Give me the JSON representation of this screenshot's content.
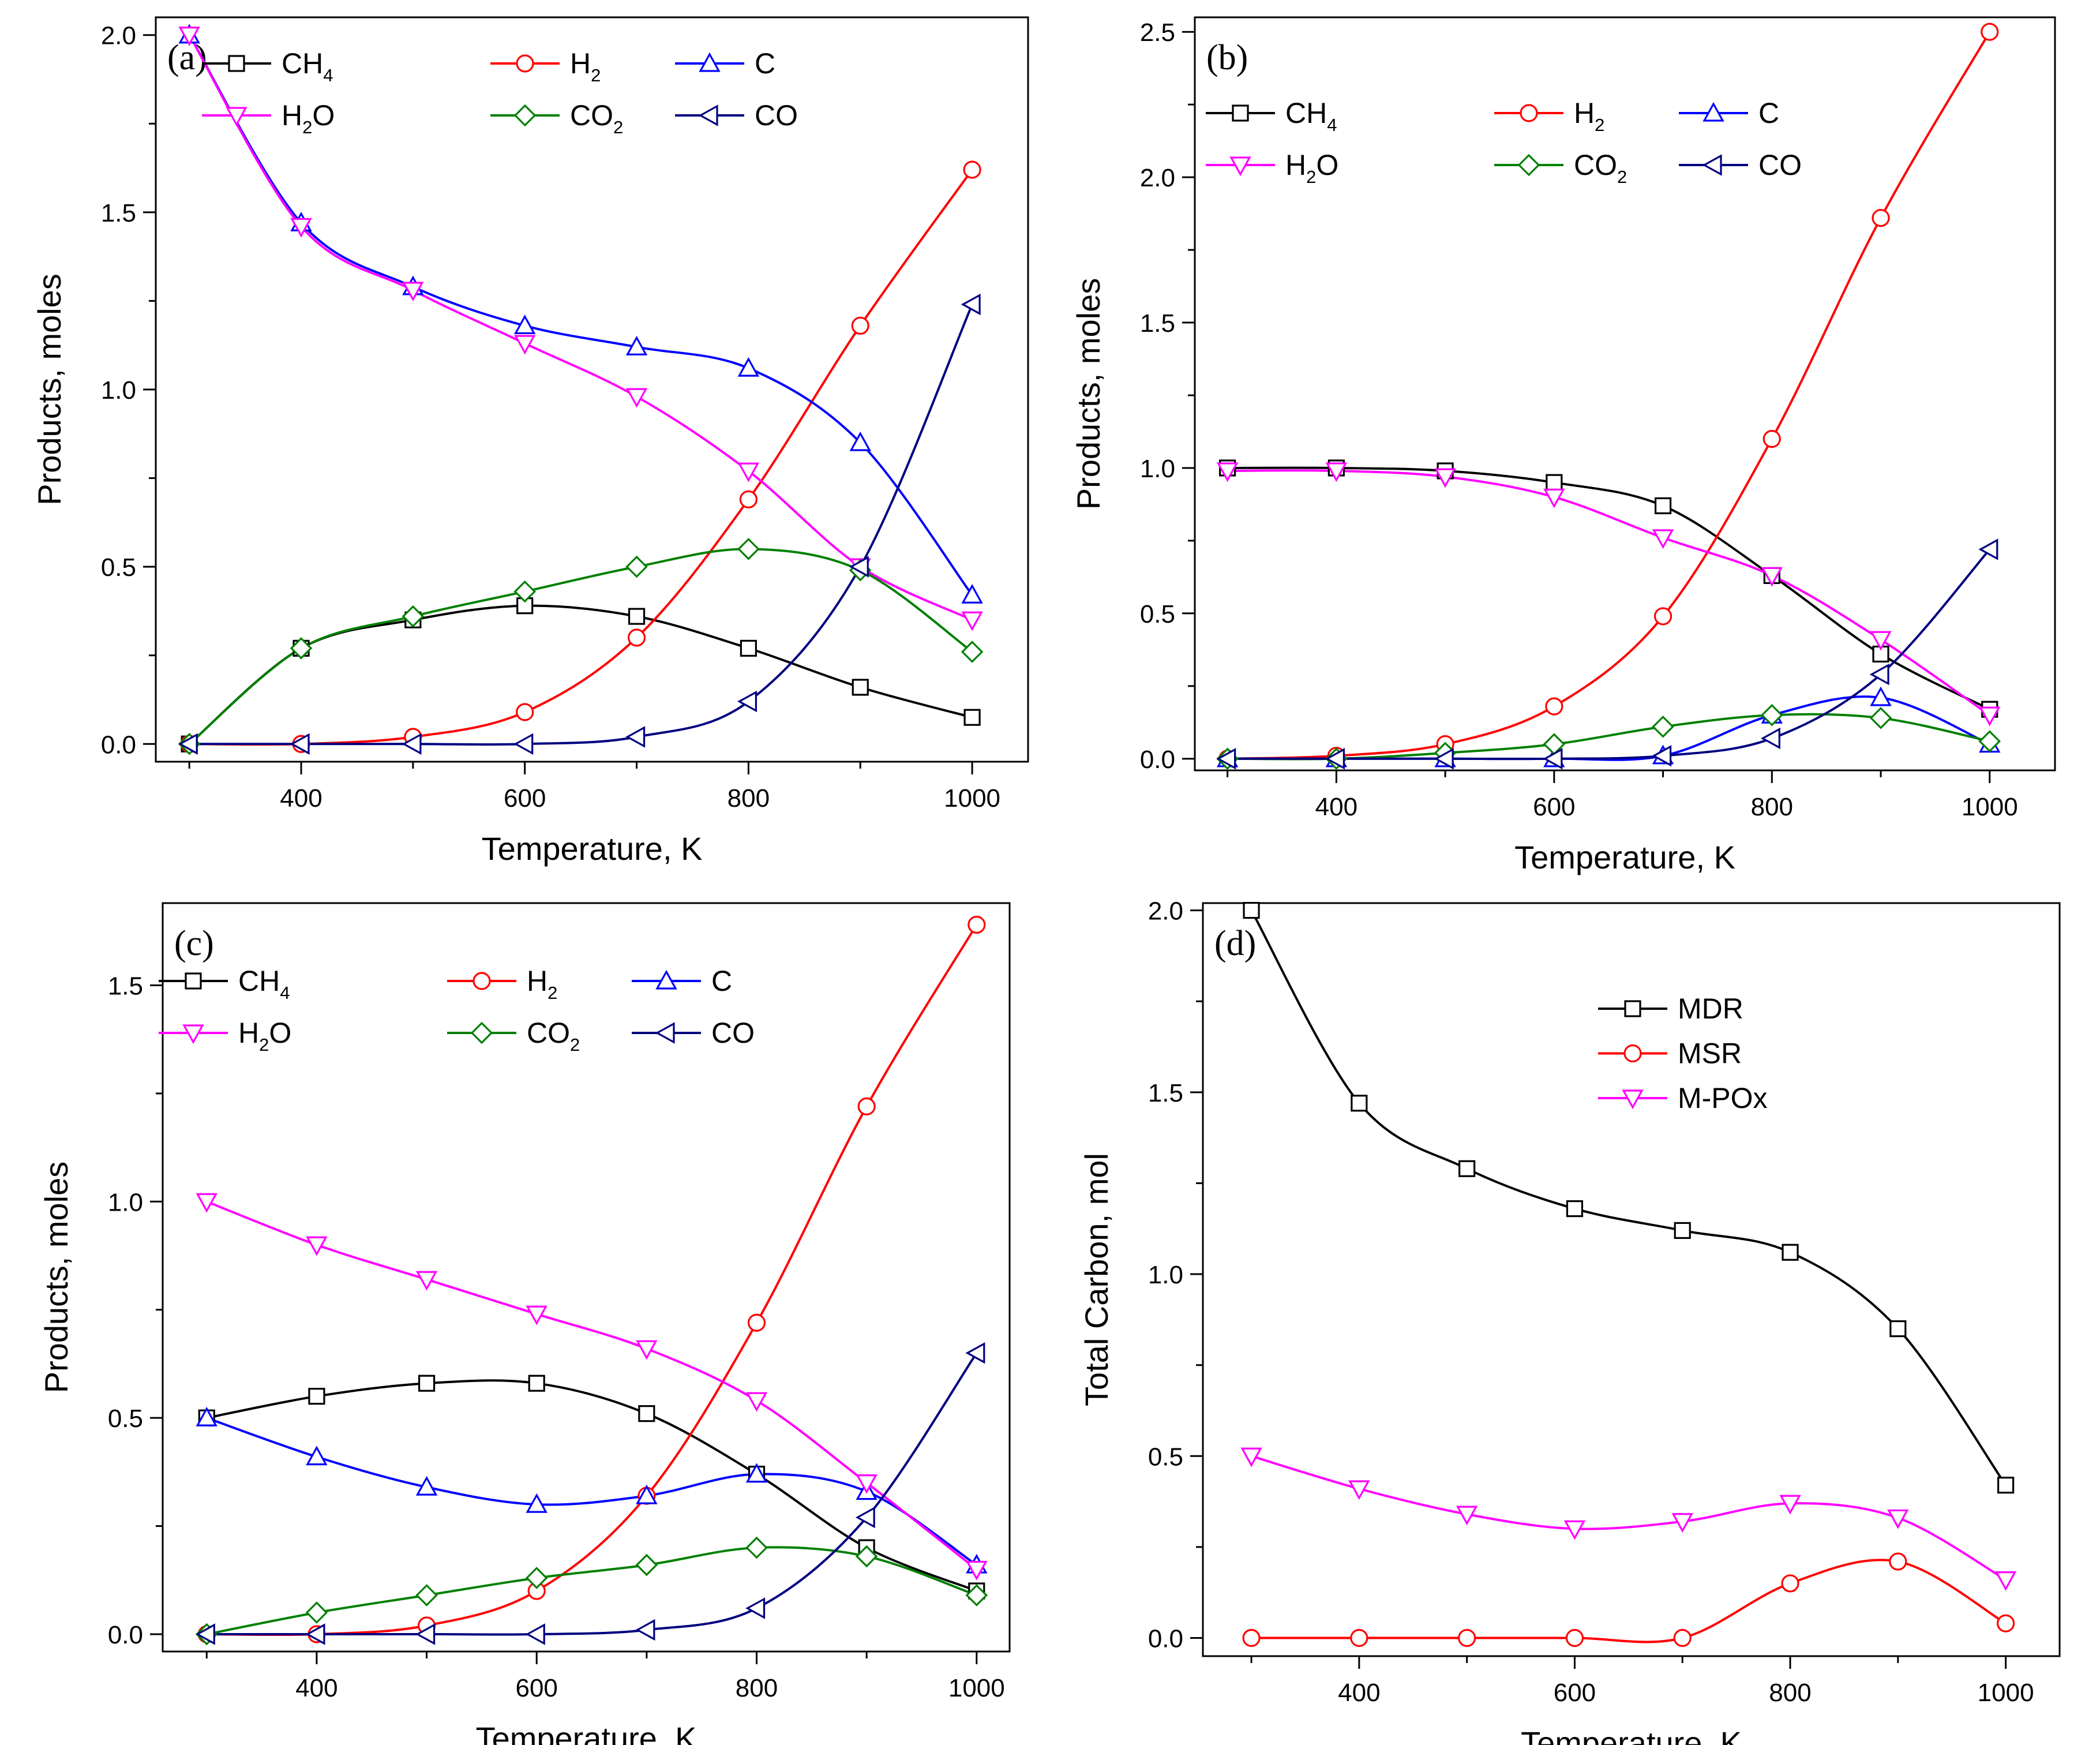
{
  "chart_data": [
    {
      "type": "line",
      "panel_label": "(a)",
      "xlabel": "Temperature, K",
      "ylabel": "Products, moles",
      "xlim": [
        270,
        1050
      ],
      "ylim": [
        -0.05,
        2.05
      ],
      "xticks": [
        "400",
        "600",
        "800",
        "1000"
      ],
      "yticks": [
        "0.0",
        "0.5",
        "1.0",
        "1.5",
        "2.0"
      ],
      "x": [
        300,
        400,
        500,
        600,
        700,
        800,
        900,
        1000
      ],
      "series": [
        {
          "name": "CH4",
          "label": "CH",
          "sub": "4",
          "color": "#000000",
          "marker": "square",
          "values": [
            0.0,
            0.27,
            0.35,
            0.39,
            0.36,
            0.27,
            0.16,
            0.075
          ]
        },
        {
          "name": "H2",
          "label": "H",
          "sub": "2",
          "color": "#ff0000",
          "marker": "circle",
          "values": [
            0.0,
            0.0,
            0.02,
            0.09,
            0.3,
            0.69,
            1.18,
            1.62
          ]
        },
        {
          "name": "C",
          "label": "C",
          "sub": "",
          "color": "#0000ff",
          "marker": "triangle-up",
          "values": [
            2.0,
            1.47,
            1.29,
            1.18,
            1.12,
            1.06,
            0.85,
            0.42
          ]
        },
        {
          "name": "H2O",
          "label": "H",
          "sub": "2",
          "tail": "O",
          "color": "#ff00ff",
          "marker": "triangle-down",
          "values": [
            2.0,
            1.46,
            1.28,
            1.13,
            0.98,
            0.77,
            0.5,
            0.35
          ]
        },
        {
          "name": "CO2",
          "label": "CO",
          "sub": "2",
          "color": "#008000",
          "marker": "diamond",
          "values": [
            0.0,
            0.27,
            0.36,
            0.43,
            0.5,
            0.55,
            0.49,
            0.26
          ]
        },
        {
          "name": "CO",
          "label": "CO",
          "sub": "",
          "color": "#000080",
          "marker": "triangle-left",
          "values": [
            0.0,
            0.0,
            0.0,
            0.0,
            0.02,
            0.12,
            0.5,
            1.24
          ]
        }
      ]
    },
    {
      "type": "line",
      "panel_label": "(b)",
      "xlabel": "Temperature, K",
      "ylabel": "Products, moles",
      "xlim": [
        270,
        1060
      ],
      "ylim": [
        -0.04,
        2.55
      ],
      "xticks": [
        "400",
        "600",
        "800",
        "1000"
      ],
      "yticks": [
        "0.0",
        "0.5",
        "1.0",
        "1.5",
        "2.0",
        "2.5"
      ],
      "x": [
        300,
        400,
        500,
        600,
        700,
        800,
        900,
        1000
      ],
      "series": [
        {
          "name": "CH4",
          "label": "CH",
          "sub": "4",
          "color": "#000000",
          "marker": "square",
          "values": [
            1.0,
            1.0,
            0.99,
            0.95,
            0.87,
            0.63,
            0.36,
            0.17
          ]
        },
        {
          "name": "H2",
          "label": "H",
          "sub": "2",
          "color": "#ff0000",
          "marker": "circle",
          "values": [
            0.0,
            0.01,
            0.05,
            0.18,
            0.49,
            1.1,
            1.86,
            2.5
          ]
        },
        {
          "name": "C",
          "label": "C",
          "sub": "",
          "color": "#0000ff",
          "marker": "triangle-up",
          "values": [
            0.0,
            0.0,
            0.0,
            0.0,
            0.01,
            0.15,
            0.21,
            0.05
          ]
        },
        {
          "name": "H2O",
          "label": "H",
          "sub": "2",
          "tail": "O",
          "color": "#ff00ff",
          "marker": "triangle-down",
          "values": [
            0.99,
            0.99,
            0.97,
            0.9,
            0.76,
            0.63,
            0.41,
            0.15
          ]
        },
        {
          "name": "CO2",
          "label": "CO",
          "sub": "2",
          "color": "#008000",
          "marker": "diamond",
          "values": [
            0.0,
            0.0,
            0.02,
            0.05,
            0.11,
            0.15,
            0.14,
            0.06
          ]
        },
        {
          "name": "CO",
          "label": "CO",
          "sub": "",
          "color": "#000080",
          "marker": "triangle-left",
          "values": [
            0.0,
            0.0,
            0.0,
            0.0,
            0.01,
            0.07,
            0.29,
            0.72
          ]
        }
      ]
    },
    {
      "type": "line",
      "panel_label": "(c)",
      "xlabel": "Temperature, K",
      "ylabel": "Products, moles",
      "xlim": [
        260,
        1030
      ],
      "ylim": [
        -0.04,
        1.69
      ],
      "xticks": [
        "400",
        "600",
        "800",
        "1000"
      ],
      "yticks": [
        "0.0",
        "0.5",
        "1.0",
        "1.5"
      ],
      "x": [
        300,
        400,
        500,
        600,
        700,
        800,
        900,
        1000
      ],
      "series": [
        {
          "name": "CH4",
          "label": "CH",
          "sub": "4",
          "color": "#000000",
          "marker": "square",
          "values": [
            0.5,
            0.55,
            0.58,
            0.58,
            0.51,
            0.37,
            0.2,
            0.1
          ]
        },
        {
          "name": "H2",
          "label": "H",
          "sub": "2",
          "color": "#ff0000",
          "marker": "circle",
          "values": [
            0.0,
            0.0,
            0.02,
            0.1,
            0.32,
            0.72,
            1.22,
            1.64
          ]
        },
        {
          "name": "C",
          "label": "C",
          "sub": "",
          "color": "#0000ff",
          "marker": "triangle-up",
          "values": [
            0.5,
            0.41,
            0.34,
            0.3,
            0.32,
            0.37,
            0.33,
            0.16
          ]
        },
        {
          "name": "H2O",
          "label": "H",
          "sub": "2",
          "tail": "O",
          "color": "#ff00ff",
          "marker": "triangle-down",
          "values": [
            1.0,
            0.9,
            0.82,
            0.74,
            0.66,
            0.54,
            0.35,
            0.15
          ]
        },
        {
          "name": "CO2",
          "label": "CO",
          "sub": "2",
          "color": "#008000",
          "marker": "diamond",
          "values": [
            0.0,
            0.05,
            0.09,
            0.13,
            0.16,
            0.2,
            0.18,
            0.09
          ]
        },
        {
          "name": "CO",
          "label": "CO",
          "sub": "",
          "color": "#000080",
          "marker": "triangle-left",
          "values": [
            0.0,
            0.0,
            0.0,
            0.0,
            0.01,
            0.06,
            0.27,
            0.65
          ]
        }
      ]
    },
    {
      "type": "line",
      "panel_label": "(d)",
      "xlabel": "Temperature, K",
      "ylabel": "Total Carbon, mol",
      "xlim": [
        255,
        1050
      ],
      "ylim": [
        -0.05,
        2.02
      ],
      "xticks": [
        "400",
        "600",
        "800",
        "1000"
      ],
      "yticks": [
        "0.0",
        "0.5",
        "1.0",
        "1.5",
        "2.0"
      ],
      "x": [
        300,
        400,
        500,
        600,
        700,
        800,
        900,
        1000
      ],
      "series": [
        {
          "name": "MDR",
          "label": "MDR",
          "sub": "",
          "color": "#000000",
          "marker": "square",
          "values": [
            2.0,
            1.47,
            1.29,
            1.18,
            1.12,
            1.06,
            0.85,
            0.42
          ]
        },
        {
          "name": "MSR",
          "label": "MSR",
          "sub": "",
          "color": "#ff0000",
          "marker": "circle",
          "values": [
            0.0,
            0.0,
            0.0,
            0.0,
            0.0,
            0.15,
            0.21,
            0.04
          ]
        },
        {
          "name": "M-POx",
          "label": "M-POx",
          "sub": "",
          "color": "#ff00ff",
          "marker": "triangle-down",
          "values": [
            0.5,
            0.41,
            0.34,
            0.3,
            0.32,
            0.37,
            0.33,
            0.16
          ]
        }
      ]
    }
  ]
}
